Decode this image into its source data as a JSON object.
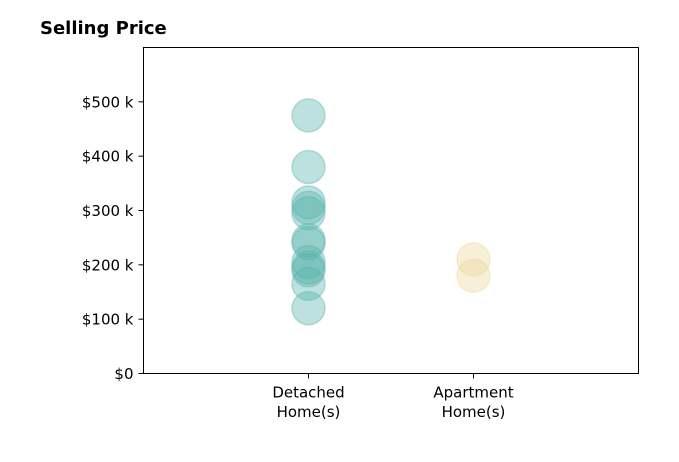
{
  "chart_data": {
    "type": "scatter",
    "title": "Selling Price",
    "xlabel": "",
    "ylabel": "",
    "categories": [
      "Detached\nHome(s)",
      "Apartment\nHome(s)"
    ],
    "x_range": [
      0,
      3
    ],
    "ylim": [
      0,
      600000
    ],
    "y_ticks": [
      0,
      100000,
      200000,
      300000,
      400000,
      500000
    ],
    "y_tick_labels": [
      "$0",
      "$100 k",
      "$200 k",
      "$300 k",
      "$400 k",
      "$500 k"
    ],
    "grid": false,
    "series": [
      {
        "category_index": 0,
        "color": "#5ab4ac",
        "values": [
          475000,
          380000,
          315000,
          305000,
          295000,
          245000,
          240000,
          205000,
          195000,
          190000,
          165000,
          120000
        ]
      },
      {
        "category_index": 1,
        "color": "#ecd69e",
        "values": [
          210000,
          180000
        ]
      }
    ],
    "marker_alpha": 0.4
  }
}
